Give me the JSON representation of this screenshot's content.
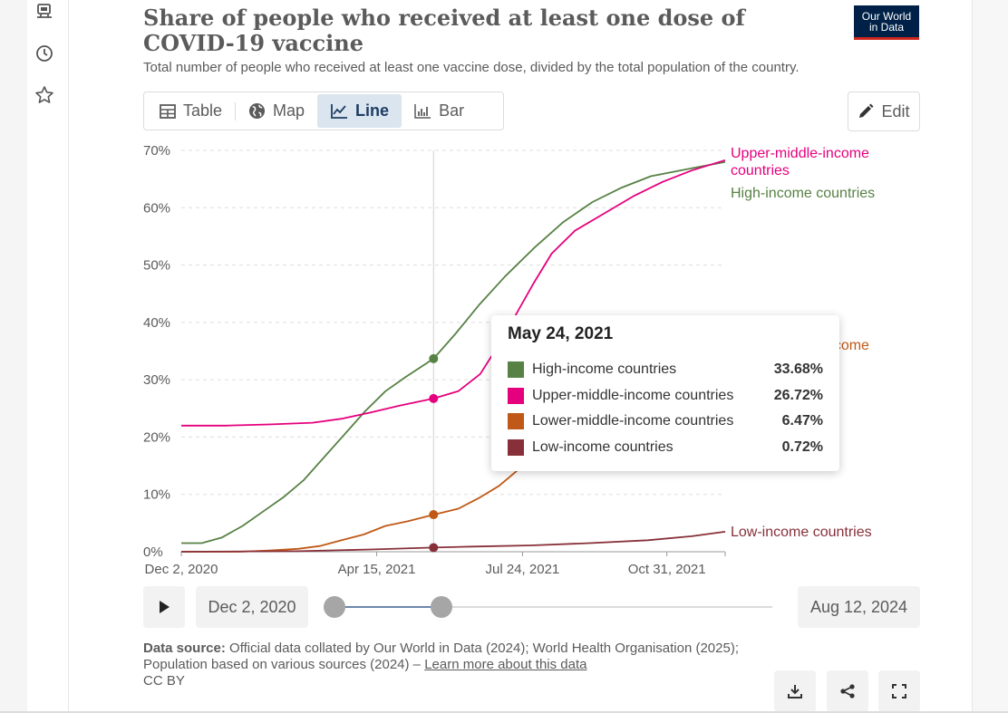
{
  "sidebar": {
    "icons": [
      "browser-icon",
      "clock-icon",
      "star-icon"
    ]
  },
  "header": {
    "title": "Share of people who received at least one dose of COVID-19 vaccine",
    "subtitle": "Total number of people who received at least one vaccine dose, divided by the total population of the country.",
    "logo_line1": "Our World",
    "logo_line2": "in Data"
  },
  "tabs": [
    {
      "label": "Table",
      "icon": "table-icon"
    },
    {
      "label": "Map",
      "icon": "globe-icon"
    },
    {
      "label": "Line",
      "icon": "line-chart-icon",
      "active": true
    },
    {
      "label": "Bar",
      "icon": "bar-chart-icon"
    }
  ],
  "edit_label": "Edit",
  "chart_data": {
    "type": "line",
    "title": "Share of people who received at least one dose of COVID-19 vaccine",
    "y_ticks": [
      "0%",
      "10%",
      "20%",
      "30%",
      "40%",
      "50%",
      "60%",
      "70%"
    ],
    "ylim": [
      0,
      70
    ],
    "x_tick_labels": [
      "Dec 2, 2020",
      "Apr 15, 2021",
      "Jul 24, 2021",
      "Oct 31, 2021"
    ],
    "x_tick_days": [
      0,
      134,
      234,
      333
    ],
    "x_range_days": [
      0,
      373
    ],
    "hover_day": 173,
    "series": [
      {
        "name": "High-income countries",
        "color": "#578145",
        "label": "High-income countries",
        "points": [
          [
            0,
            1.5
          ],
          [
            14,
            1.5
          ],
          [
            28,
            2.5
          ],
          [
            42,
            4.5
          ],
          [
            56,
            7
          ],
          [
            70,
            9.5
          ],
          [
            84,
            12.5
          ],
          [
            98,
            16.5
          ],
          [
            112,
            20.5
          ],
          [
            126,
            24.5
          ],
          [
            140,
            28
          ],
          [
            154,
            30.5
          ],
          [
            173,
            33.68
          ],
          [
            188,
            38
          ],
          [
            204,
            43
          ],
          [
            222,
            48
          ],
          [
            242,
            53
          ],
          [
            262,
            57.5
          ],
          [
            282,
            61
          ],
          [
            302,
            63.5
          ],
          [
            322,
            65.5
          ],
          [
            342,
            66.5
          ],
          [
            373,
            68
          ]
        ]
      },
      {
        "name": "Upper-middle-income countries",
        "color": "#e5007e",
        "label_lines": [
          "Upper-middle-income",
          "countries"
        ],
        "points": [
          [
            0,
            22
          ],
          [
            30,
            22
          ],
          [
            60,
            22.2
          ],
          [
            90,
            22.5
          ],
          [
            110,
            23.2
          ],
          [
            130,
            24.3
          ],
          [
            150,
            25.5
          ],
          [
            173,
            26.72
          ],
          [
            190,
            28
          ],
          [
            205,
            31
          ],
          [
            220,
            37
          ],
          [
            232,
            42.5
          ],
          [
            242,
            47
          ],
          [
            254,
            52
          ],
          [
            270,
            56
          ],
          [
            290,
            59
          ],
          [
            310,
            62
          ],
          [
            330,
            64.5
          ],
          [
            350,
            66.5
          ],
          [
            373,
            68.3
          ]
        ]
      },
      {
        "name": "Lower-middle-income countries",
        "color": "#c05917",
        "label": "Lower-middle-income",
        "points": [
          [
            0,
            0
          ],
          [
            40,
            0
          ],
          [
            60,
            0.2
          ],
          [
            80,
            0.5
          ],
          [
            95,
            1
          ],
          [
            110,
            2
          ],
          [
            125,
            3
          ],
          [
            140,
            4.5
          ],
          [
            155,
            5.3
          ],
          [
            173,
            6.47
          ],
          [
            190,
            7.5
          ],
          [
            205,
            9.5
          ],
          [
            218,
            11.5
          ],
          [
            232,
            14.5
          ]
        ]
      },
      {
        "name": "Low-income countries",
        "color": "#883039",
        "label": "Low-income countries",
        "points": [
          [
            0,
            0
          ],
          [
            80,
            0.1
          ],
          [
            130,
            0.4
          ],
          [
            173,
            0.72
          ],
          [
            200,
            0.9
          ],
          [
            240,
            1.1
          ],
          [
            280,
            1.5
          ],
          [
            320,
            2
          ],
          [
            350,
            2.7
          ],
          [
            373,
            3.5
          ]
        ]
      }
    ]
  },
  "tooltip": {
    "date": "May 24, 2021",
    "rows": [
      {
        "name": "High-income countries",
        "value": "33.68%",
        "color": "#578145"
      },
      {
        "name": "Upper-middle-income countries",
        "value": "26.72%",
        "color": "#e5007e"
      },
      {
        "name": "Lower-middle-income countries",
        "value": "6.47%",
        "color": "#c05917"
      },
      {
        "name": "Low-income countries",
        "value": "0.72%",
        "color": "#883039"
      }
    ]
  },
  "timeline": {
    "start_date": "Dec 2, 2020",
    "end_date": "Aug 12, 2024"
  },
  "footer": {
    "source_label": "Data source:",
    "source_text": "Official data collated by Our World in Data (2024); World Health Organisation (2025); Population based on various sources (2024) –",
    "learn_more": "Learn more about this data",
    "license": "CC BY"
  }
}
